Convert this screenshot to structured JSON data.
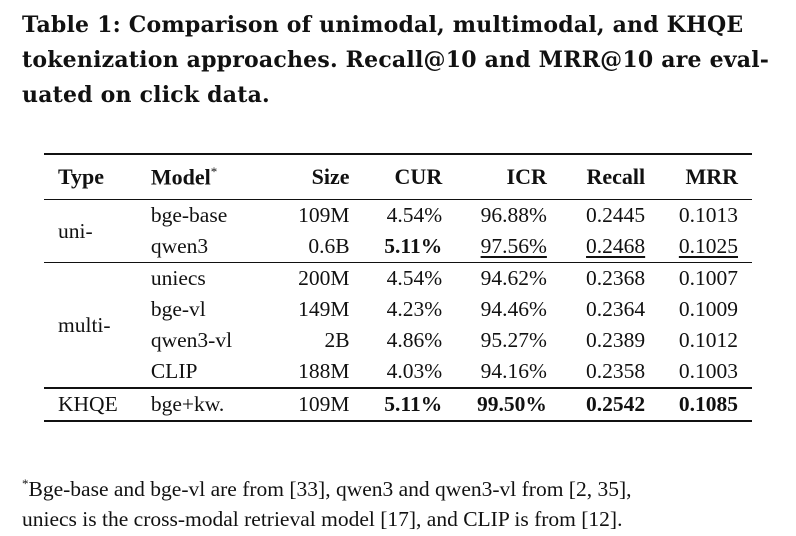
{
  "caption": {
    "line1": "Table 1: Comparison of unimodal, multimodal, and KHQE",
    "line2": "tokenization approaches. Recall@10 and MRR@10 are eval-",
    "line3": "uated on click data."
  },
  "table": {
    "headers": {
      "type": "Type",
      "model": "Model",
      "model_sup": "*",
      "size": "Size",
      "cur": "CUR",
      "icr": "ICR",
      "recall": "Recall",
      "mrr": "MRR"
    },
    "groups": [
      {
        "type": "uni-",
        "rows": [
          {
            "model": "bge-base",
            "size": "109M",
            "cur": "4.54%",
            "icr": "96.88%",
            "recall": "0.2445",
            "mrr": "0.1013"
          },
          {
            "model": "qwen3",
            "size": "0.6B",
            "cur": "5.11%",
            "icr": "97.56%",
            "recall": "0.2468",
            "mrr": "0.1025"
          }
        ]
      },
      {
        "type": "multi-",
        "rows": [
          {
            "model": "uniecs",
            "size": "200M",
            "cur": "4.54%",
            "icr": "94.62%",
            "recall": "0.2368",
            "mrr": "0.1007"
          },
          {
            "model": "bge-vl",
            "size": "149M",
            "cur": "4.23%",
            "icr": "94.46%",
            "recall": "0.2364",
            "mrr": "0.1009"
          },
          {
            "model": "qwen3-vl",
            "size": "2B",
            "cur": "4.86%",
            "icr": "95.27%",
            "recall": "0.2389",
            "mrr": "0.1012"
          },
          {
            "model": "CLIP",
            "size": "188M",
            "cur": "4.03%",
            "icr": "94.16%",
            "recall": "0.2358",
            "mrr": "0.1003"
          }
        ]
      },
      {
        "type": "KHQE",
        "rows": [
          {
            "model": "bge+kw.",
            "size": "109M",
            "cur": "5.11%",
            "icr": "99.50%",
            "recall": "0.2542",
            "mrr": "0.1085"
          }
        ]
      }
    ]
  },
  "footnote": {
    "marker": "*",
    "line1": "Bge-base and bge-vl are from [33], qwen3 and qwen3-vl from [2, 35],",
    "line2": "uniecs is the cross-modal retrieval model [17], and CLIP is from [12]."
  }
}
